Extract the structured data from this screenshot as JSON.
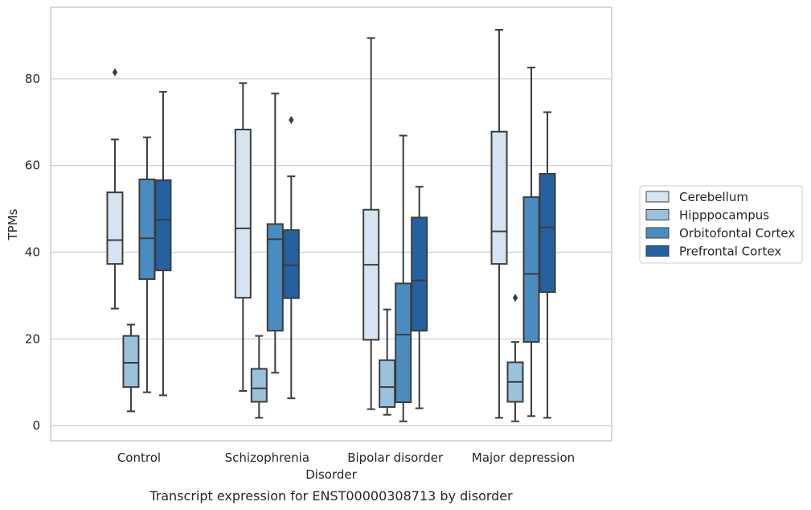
{
  "chart_data": {
    "type": "box",
    "caption": "Transcript expression for ENST00000308713 by disorder",
    "xlabel": "Disorder",
    "ylabel": "TPMs",
    "ylim": [
      -3.5,
      96.5
    ],
    "yticks": [
      0,
      20,
      40,
      60,
      80
    ],
    "grid": "horizontal",
    "legend_position": "right",
    "categories": [
      "Control",
      "Schizophrenia",
      "Bipolar disorder",
      "Major depression"
    ],
    "series": [
      {
        "name": "Cerebellum",
        "color": "#d6e4f2",
        "boxes": [
          {
            "whisker_low": 27,
            "q1": 37.3,
            "median": 42.8,
            "q3": 53.8,
            "whisker_high": 66,
            "outliers": [
              81.5
            ]
          },
          {
            "whisker_low": 8,
            "q1": 29.5,
            "median": 45.5,
            "q3": 68.3,
            "whisker_high": 79,
            "outliers": []
          },
          {
            "whisker_low": 3.8,
            "q1": 19.8,
            "median": 37.1,
            "q3": 49.8,
            "whisker_high": 89.4,
            "outliers": []
          },
          {
            "whisker_low": 1.8,
            "q1": 37.3,
            "median": 44.8,
            "q3": 67.8,
            "whisker_high": 91.3,
            "outliers": []
          }
        ]
      },
      {
        "name": "Hipppocampus",
        "color": "#9ac2dc",
        "boxes": [
          {
            "whisker_low": 3.3,
            "q1": 8.9,
            "median": 14.5,
            "q3": 20.7,
            "whisker_high": 23.3,
            "outliers": []
          },
          {
            "whisker_low": 1.8,
            "q1": 5.5,
            "median": 8.6,
            "q3": 13.1,
            "whisker_high": 20.7,
            "outliers": []
          },
          {
            "whisker_low": 2.5,
            "q1": 4.3,
            "median": 8.9,
            "q3": 15.1,
            "whisker_high": 26.8,
            "outliers": []
          },
          {
            "whisker_low": 1.0,
            "q1": 5.5,
            "median": 10.1,
            "q3": 14.6,
            "whisker_high": 19.3,
            "outliers": [
              29.5
            ]
          }
        ]
      },
      {
        "name": "Orbitofontal Cortex",
        "color": "#4b8cc0",
        "boxes": [
          {
            "whisker_low": 7.7,
            "q1": 33.8,
            "median": 43.2,
            "q3": 56.8,
            "whisker_high": 66.5,
            "outliers": []
          },
          {
            "whisker_low": 12.2,
            "q1": 21.9,
            "median": 43.0,
            "q3": 46.5,
            "whisker_high": 76.6,
            "outliers": []
          },
          {
            "whisker_low": 1.0,
            "q1": 5.4,
            "median": 21.0,
            "q3": 32.8,
            "whisker_high": 66.9,
            "outliers": []
          },
          {
            "whisker_low": 2.2,
            "q1": 19.3,
            "median": 35.0,
            "q3": 52.7,
            "whisker_high": 82.6,
            "outliers": []
          }
        ]
      },
      {
        "name": "Prefrontal Cortex",
        "color": "#2461a1",
        "boxes": [
          {
            "whisker_low": 7.0,
            "q1": 35.8,
            "median": 47.5,
            "q3": 56.6,
            "whisker_high": 77.0,
            "outliers": []
          },
          {
            "whisker_low": 6.3,
            "q1": 29.4,
            "median": 37.0,
            "q3": 45.1,
            "whisker_high": 57.5,
            "outliers": [
              70.5
            ]
          },
          {
            "whisker_low": 4.0,
            "q1": 21.9,
            "median": 33.5,
            "q3": 48.0,
            "whisker_high": 55.1,
            "outliers": []
          },
          {
            "whisker_low": 1.8,
            "q1": 30.8,
            "median": 45.7,
            "q3": 58.1,
            "whisker_high": 72.3,
            "outliers": []
          }
        ]
      }
    ]
  }
}
